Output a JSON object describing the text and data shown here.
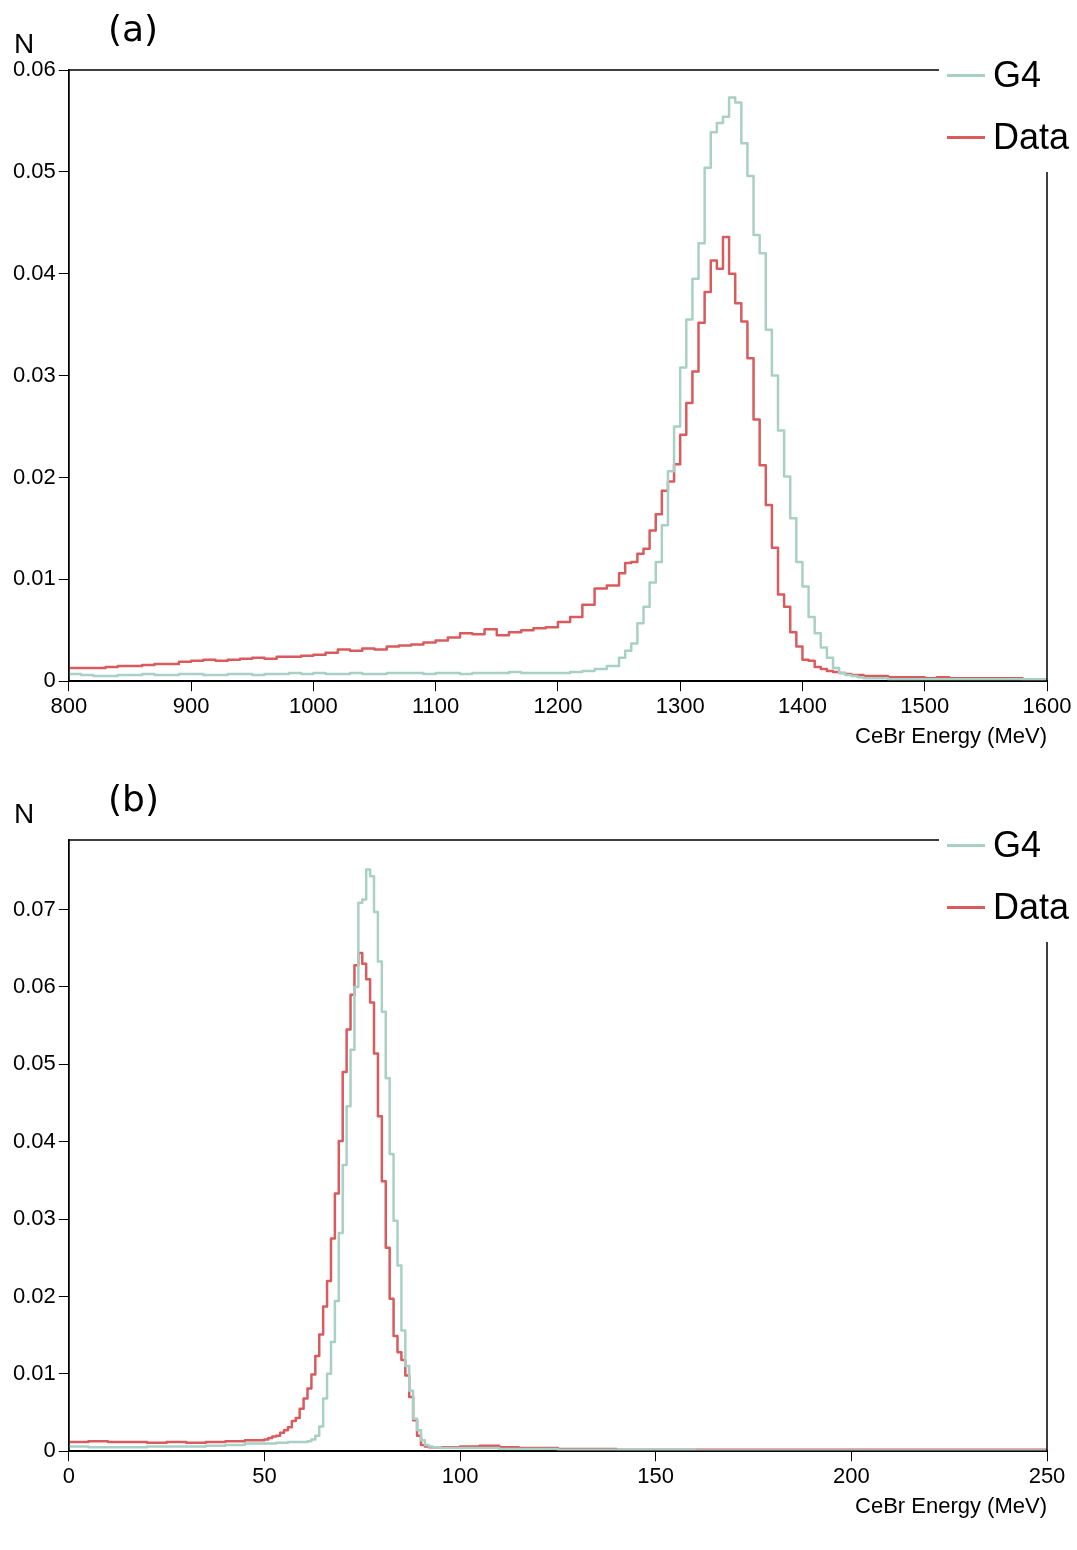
{
  "chart_data": [
    {
      "type": "histogram",
      "title": "(a)",
      "xlabel": "CeBr Energy (MeV)",
      "ylabel": "N",
      "bins": [
        800,
        810,
        820,
        830,
        840,
        850,
        860,
        870,
        880,
        890,
        900,
        910,
        920,
        930,
        940,
        950,
        960,
        970,
        980,
        990,
        1000,
        1010,
        1020,
        1030,
        1040,
        1050,
        1060,
        1070,
        1080,
        1090,
        1100,
        1110,
        1120,
        1130,
        1140,
        1150,
        1160,
        1170,
        1180,
        1190,
        1200,
        1210,
        1220,
        1230,
        1240,
        1250,
        1255,
        1260,
        1265,
        1270,
        1275,
        1280,
        1285,
        1290,
        1295,
        1300,
        1305,
        1310,
        1315,
        1320,
        1325,
        1330,
        1335,
        1340,
        1345,
        1350,
        1355,
        1360,
        1365,
        1370,
        1375,
        1380,
        1385,
        1390,
        1395,
        1400,
        1405,
        1410,
        1415,
        1420,
        1425,
        1430,
        1435,
        1440,
        1445,
        1450,
        1460,
        1470,
        1480,
        1490,
        1500,
        1510,
        1520,
        1530,
        1540,
        1550,
        1560,
        1570,
        1580,
        1590,
        1600
      ],
      "series": [
        {
          "name": "G4",
          "color": "#a9d0c5",
          "values": [
            0.0007,
            0.0006,
            0.0005,
            0.0005,
            0.0006,
            0.0006,
            0.0007,
            0.0006,
            0.0006,
            0.0007,
            0.0007,
            0.0006,
            0.0006,
            0.0007,
            0.0007,
            0.0006,
            0.0007,
            0.0007,
            0.0008,
            0.0007,
            0.0008,
            0.0007,
            0.0007,
            0.0008,
            0.0007,
            0.0007,
            0.0008,
            0.0008,
            0.0008,
            0.0007,
            0.0008,
            0.0008,
            0.0007,
            0.0008,
            0.0008,
            0.0008,
            0.0009,
            0.0008,
            0.0008,
            0.0008,
            0.0008,
            0.0009,
            0.001,
            0.0012,
            0.0015,
            0.0023,
            0.003,
            0.0037,
            0.0057,
            0.0073,
            0.0097,
            0.0117,
            0.0153,
            0.0206,
            0.025,
            0.0308,
            0.0355,
            0.0395,
            0.043,
            0.0504,
            0.0539,
            0.0548,
            0.0554,
            0.0573,
            0.0568,
            0.0528,
            0.0496,
            0.0438,
            0.042,
            0.0345,
            0.03,
            0.0246,
            0.0201,
            0.016,
            0.0117,
            0.0093,
            0.0063,
            0.0047,
            0.0033,
            0.0023,
            0.0013,
            0.0008,
            0.0006,
            0.0005,
            0.0004,
            0.0003,
            0.0003,
            0.0002,
            0.0002,
            0.0002,
            0.0002,
            0.0002,
            0.0002,
            0.0002,
            0.0002,
            0.0002,
            0.0002,
            0.0002,
            0.0002,
            0.0002
          ]
        },
        {
          "name": "Data",
          "color": "#d95b5e",
          "values": [
            0.0013,
            0.0013,
            0.0013,
            0.0014,
            0.0015,
            0.0015,
            0.0016,
            0.0017,
            0.0017,
            0.0019,
            0.002,
            0.0021,
            0.002,
            0.0021,
            0.0022,
            0.0023,
            0.0022,
            0.0024,
            0.0024,
            0.0025,
            0.0026,
            0.0028,
            0.0031,
            0.003,
            0.0032,
            0.0031,
            0.0034,
            0.0035,
            0.0036,
            0.0038,
            0.004,
            0.0043,
            0.0047,
            0.0046,
            0.0051,
            0.0045,
            0.0048,
            0.005,
            0.0052,
            0.0053,
            0.0058,
            0.0063,
            0.0075,
            0.0091,
            0.0094,
            0.0106,
            0.0116,
            0.0117,
            0.0125,
            0.013,
            0.0148,
            0.0164,
            0.0187,
            0.0196,
            0.0213,
            0.0242,
            0.0273,
            0.0304,
            0.0352,
            0.0382,
            0.0413,
            0.0405,
            0.0436,
            0.04,
            0.0371,
            0.0353,
            0.0317,
            0.0257,
            0.0212,
            0.0173,
            0.0131,
            0.0085,
            0.0073,
            0.0048,
            0.0034,
            0.0021,
            0.002,
            0.0014,
            0.0012,
            0.001,
            0.0009,
            0.0008,
            0.0007,
            0.0006,
            0.0006,
            0.0005,
            0.0005,
            0.0004,
            0.0004,
            0.0004,
            0.0003,
            0.0004,
            0.0003,
            0.0003,
            0.0003,
            0.0003,
            0.0003,
            0.0003,
            0.0002,
            0.0002
          ]
        }
      ],
      "xlim": [
        800,
        1600
      ],
      "ylim": [
        0,
        0.06
      ],
      "xticks": [
        800,
        900,
        1000,
        1100,
        1200,
        1300,
        1400,
        1500,
        1600
      ],
      "yticks": [
        0,
        0.01,
        0.02,
        0.03,
        0.04,
        0.05,
        0.06
      ],
      "legend": "top right"
    },
    {
      "type": "histogram",
      "title": "(b)",
      "xlabel": "CeBr Energy (MeV)",
      "ylabel": "N",
      "bins": [
        0,
        5,
        10,
        15,
        20,
        25,
        30,
        35,
        40,
        45,
        50,
        51,
        52,
        53,
        54,
        55,
        56,
        57,
        58,
        59,
        60,
        61,
        62,
        63,
        64,
        65,
        66,
        67,
        68,
        69,
        70,
        71,
        72,
        73,
        74,
        75,
        76,
        77,
        78,
        79,
        80,
        81,
        82,
        83,
        84,
        85,
        86,
        87,
        88,
        89,
        90,
        91,
        92,
        93,
        94,
        95,
        96,
        97,
        98,
        99,
        100,
        105,
        110,
        115,
        120,
        125,
        130,
        135,
        140,
        145,
        150,
        155,
        160,
        165,
        170,
        175,
        180,
        185,
        190,
        195,
        200,
        205,
        210,
        215,
        220,
        225,
        230,
        235,
        240,
        245,
        250
      ],
      "series": [
        {
          "name": "G4",
          "color": "#a9d0c5",
          "values": [
            0.0006,
            0.0005,
            0.0005,
            0.0005,
            0.0006,
            0.0006,
            0.0006,
            0.0007,
            0.0008,
            0.001,
            0.001,
            0.001,
            0.001,
            0.0011,
            0.0011,
            0.0011,
            0.0012,
            0.0012,
            0.0012,
            0.0012,
            0.0012,
            0.0013,
            0.0015,
            0.002,
            0.0032,
            0.0068,
            0.01,
            0.0141,
            0.0194,
            0.0282,
            0.037,
            0.0446,
            0.0519,
            0.06,
            0.0709,
            0.0713,
            0.0752,
            0.0743,
            0.0697,
            0.0633,
            0.0568,
            0.0482,
            0.0384,
            0.0298,
            0.024,
            0.0156,
            0.011,
            0.0078,
            0.0042,
            0.0027,
            0.0014,
            0.0008,
            0.0006,
            0.0005,
            0.0005,
            0.0004,
            0.0004,
            0.0004,
            0.0004,
            0.0004,
            0.0004,
            0.0004,
            0.0003,
            0.0003,
            0.0003,
            0.0002,
            0.0002,
            0.0002,
            0.0002,
            0.0002,
            0.0002,
            0.0002,
            0.0001,
            0.0001,
            0.0001,
            0.0001,
            0.0001,
            0.0001,
            0.0001,
            0.0001,
            0.0001,
            0.0001,
            0.0001,
            0.0001,
            0.0001,
            0.0001,
            0.0001,
            0.0001,
            0.0001,
            0.0001
          ]
        },
        {
          "name": "Data",
          "color": "#d95b5e",
          "values": [
            0.0012,
            0.0013,
            0.0012,
            0.0012,
            0.0011,
            0.0012,
            0.0011,
            0.0012,
            0.0013,
            0.0014,
            0.0015,
            0.0017,
            0.0019,
            0.002,
            0.0024,
            0.0027,
            0.0031,
            0.0039,
            0.0043,
            0.0055,
            0.0068,
            0.0081,
            0.0099,
            0.0123,
            0.0151,
            0.0187,
            0.022,
            0.0275,
            0.0333,
            0.0401,
            0.049,
            0.0545,
            0.059,
            0.0628,
            0.0644,
            0.063,
            0.061,
            0.058,
            0.0514,
            0.0433,
            0.0349,
            0.0263,
            0.0197,
            0.0149,
            0.0128,
            0.0118,
            0.0098,
            0.007,
            0.004,
            0.002,
            0.0008,
            0.0006,
            0.0005,
            0.0005,
            0.0005,
            0.0005,
            0.0005,
            0.0005,
            0.0005,
            0.0005,
            0.0006,
            0.0007,
            0.0005,
            0.0004,
            0.0004,
            0.0003,
            0.0003,
            0.0003,
            0.0002,
            0.0002,
            0.0002,
            0.0002,
            0.0002,
            0.0002,
            0.0002,
            0.0002,
            0.0002,
            0.0002,
            0.0002,
            0.0002,
            0.0002,
            0.0002,
            0.0002,
            0.0002,
            0.0002,
            0.0002,
            0.0002,
            0.0002,
            0.0002,
            0.0002
          ]
        }
      ],
      "xlim": [
        0,
        250
      ],
      "ylim": [
        0,
        0.079
      ],
      "xticks": [
        0,
        50,
        100,
        150,
        200,
        250
      ],
      "yticks": [
        0,
        0.01,
        0.02,
        0.03,
        0.04,
        0.05,
        0.06,
        0.07
      ],
      "legend": "top right"
    }
  ]
}
